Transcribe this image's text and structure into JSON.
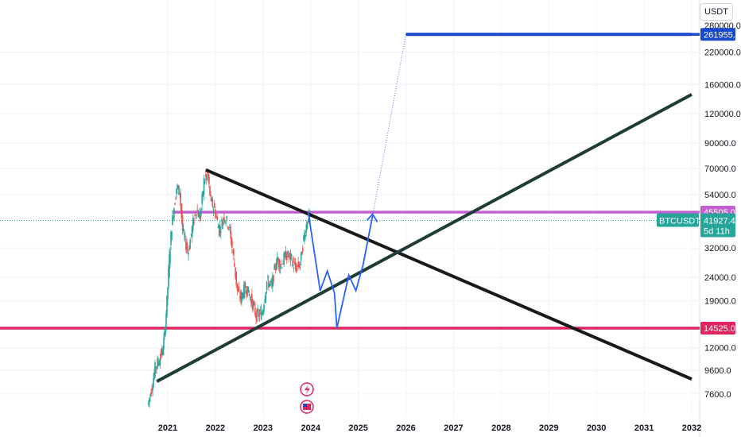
{
  "currency_label": "USDT",
  "chart_data": {
    "type": "candlestick",
    "symbol": "BTCUSDT.P",
    "timeframe_label": "5d 11h",
    "last_price": 41927.4,
    "y_scale": "log",
    "y_ticks": [
      "220000.0",
      "160000.0",
      "120000.0",
      "90000.0",
      "70000.0",
      "54000.0",
      "32000.0",
      "24000.0",
      "19000.0",
      "12000.0",
      "9600.0",
      "7600.0"
    ],
    "y_tick_values": [
      220000,
      160000,
      120000,
      90000,
      70000,
      54000,
      32000,
      24000,
      19000,
      12000,
      9600,
      7600
    ],
    "y_top_partial": "280000.0",
    "x_ticks": [
      "2021",
      "2022",
      "2023",
      "2024",
      "2025",
      "2026",
      "2027",
      "2028",
      "2029",
      "2030",
      "2031",
      "2032"
    ],
    "x_tick_values": [
      2021,
      2022,
      2023,
      2024,
      2025,
      2026,
      2027,
      2028,
      2029,
      2030,
      2031,
      2032
    ],
    "price_path": [
      [
        2020.6,
        6800
      ],
      [
        2020.7,
        8500
      ],
      [
        2020.75,
        9800
      ],
      [
        2020.82,
        10500
      ],
      [
        2020.9,
        11500
      ],
      [
        2020.95,
        13500
      ],
      [
        2021.0,
        19000
      ],
      [
        2021.05,
        29000
      ],
      [
        2021.1,
        40000
      ],
      [
        2021.15,
        48000
      ],
      [
        2021.2,
        58000
      ],
      [
        2021.27,
        56000
      ],
      [
        2021.33,
        38000
      ],
      [
        2021.4,
        33000
      ],
      [
        2021.45,
        31000
      ],
      [
        2021.55,
        41000
      ],
      [
        2021.62,
        47000
      ],
      [
        2021.7,
        43000
      ],
      [
        2021.78,
        62000
      ],
      [
        2021.85,
        66000
      ],
      [
        2021.92,
        51000
      ],
      [
        2022.0,
        47000
      ],
      [
        2022.1,
        38000
      ],
      [
        2022.2,
        44000
      ],
      [
        2022.3,
        40000
      ],
      [
        2022.4,
        29000
      ],
      [
        2022.48,
        21000
      ],
      [
        2022.55,
        19500
      ],
      [
        2022.65,
        22000
      ],
      [
        2022.75,
        19800
      ],
      [
        2022.87,
        16500
      ],
      [
        2023.0,
        16800
      ],
      [
        2023.1,
        23000
      ],
      [
        2023.2,
        22000
      ],
      [
        2023.3,
        28500
      ],
      [
        2023.4,
        27000
      ],
      [
        2023.5,
        30000
      ],
      [
        2023.6,
        29000
      ],
      [
        2023.7,
        26000
      ],
      [
        2023.8,
        27500
      ],
      [
        2023.87,
        35000
      ],
      [
        2023.95,
        42000
      ],
      [
        2024.0,
        44500
      ]
    ],
    "lines": [
      {
        "name": "resistance",
        "color": "#1a1a1a",
        "from": [
          2021.8,
          69000
        ],
        "to": [
          2032.0,
          8800
        ]
      },
      {
        "name": "support",
        "color": "#1f3d36",
        "from": [
          2020.77,
          8600
        ],
        "to": [
          2032.0,
          145000
        ]
      },
      {
        "name": "target",
        "color": "#1848cc",
        "from": [
          2026.0,
          261955.1
        ],
        "to": [
          2032.0,
          261955.1
        ]
      },
      {
        "name": "dotted-projection",
        "color": "#5577dd",
        "from": [
          2025.3,
          44000
        ],
        "to": [
          2026.0,
          261955.1
        ]
      }
    ],
    "projection_path": [
      [
        2023.95,
        45505
      ],
      [
        2024.2,
        21000
      ],
      [
        2024.35,
        25500
      ],
      [
        2024.5,
        20500
      ],
      [
        2024.55,
        14525
      ],
      [
        2024.8,
        24500
      ],
      [
        2024.95,
        21000
      ],
      [
        2025.1,
        27000
      ],
      [
        2025.3,
        44000
      ]
    ],
    "levels": [
      {
        "label": "261955.1",
        "value": 261955.1,
        "color": "#1848cc"
      },
      {
        "label": "45505.0",
        "value": 45505.0,
        "color": "#c45fd2"
      },
      {
        "label": "14525.0",
        "value": 14525.0,
        "color": "#e0245e"
      }
    ],
    "current_label": "41927.4",
    "current_color": "#26a69a"
  }
}
